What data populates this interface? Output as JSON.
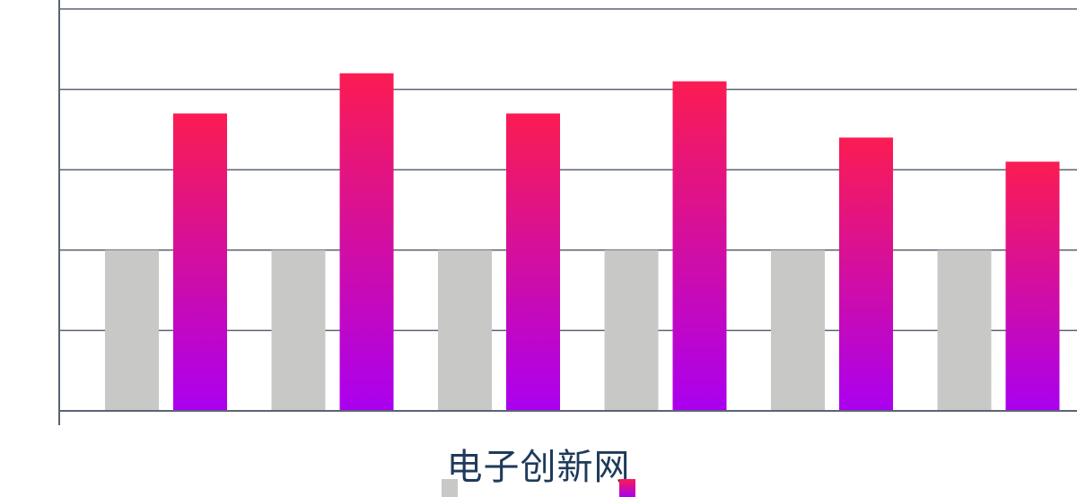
{
  "chart_data": {
    "type": "bar",
    "title": "",
    "xlabel": "",
    "ylabel": "",
    "ylim": [
      0,
      5
    ],
    "grid": true,
    "categories": [
      "",
      "",
      "",
      "",
      "",
      ""
    ],
    "series": [
      {
        "values": [
          2,
          2,
          2,
          2,
          2,
          2
        ],
        "color": "#c8c9c7"
      },
      {
        "values": [
          3.7,
          4.2,
          3.7,
          4.1,
          3.4,
          3.1
        ],
        "color_top": "#fb1c52",
        "color_bottom": "#aa00f0"
      }
    ],
    "legend": "bottom"
  },
  "watermark": {
    "text": "电子创新网"
  },
  "colors": {
    "axis": "#5b6373",
    "grid": "#5b6373",
    "grey": "#c8c9c7",
    "grad_top": "#fb1c52",
    "grad_bottom": "#aa00f0"
  }
}
